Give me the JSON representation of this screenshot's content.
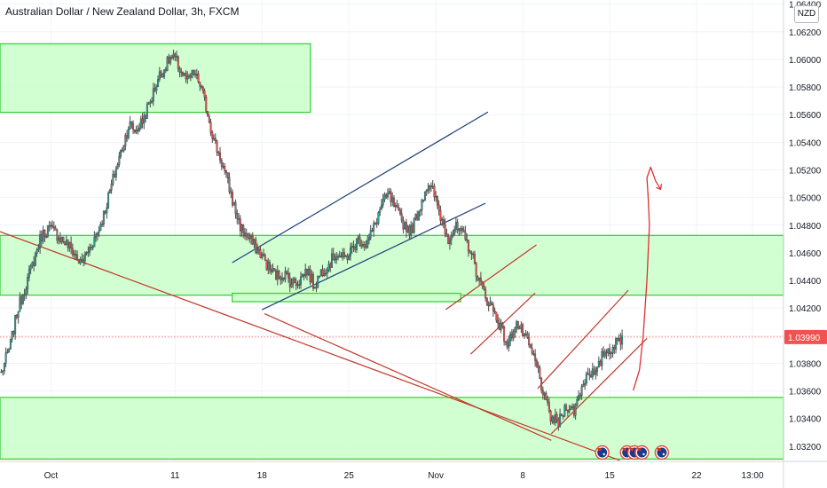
{
  "header": {
    "title": "Australian Dollar / New Zealand Dollar, 3h, FXCM",
    "currency_badge": "NZD"
  },
  "colors": {
    "up": "#26a69a",
    "down": "#ef5350",
    "candle": "#4a4a4a",
    "zone_fill": "#ccffcc",
    "zone_stroke": "#33cc33",
    "channel_blue": "#1f3e7a",
    "trend_red": "#c0392b",
    "price_label_bg": "#ef5350",
    "grid": "#f0f3fa",
    "axis_text": "#131722"
  },
  "chart_data": {
    "type": "candlestick",
    "symbol": "AUDNZD",
    "timeframe": "3h",
    "source": "FXCM",
    "y_axis": {
      "ticks": [
        "1.03200",
        "1.03400",
        "1.03600",
        "1.03800",
        "1.04000",
        "1.04200",
        "1.04400",
        "1.04600",
        "1.04800",
        "1.05000",
        "1.05200",
        "1.05400",
        "1.05600",
        "1.05800",
        "1.06000",
        "1.06200",
        "1.06400"
      ],
      "range": [
        1.0309,
        1.0643
      ]
    },
    "x_axis": {
      "ticks": [
        {
          "label": "Oct",
          "day": 0
        },
        {
          "label": "11",
          "day": 10
        },
        {
          "label": "18",
          "day": 17
        },
        {
          "label": "25",
          "day": 24
        },
        {
          "label": "Nov",
          "day": 31
        },
        {
          "label": "8",
          "day": 38
        },
        {
          "label": "15",
          "day": 45
        },
        {
          "label": "22",
          "day": 52
        },
        {
          "label": "13:00",
          "day": 56.5
        }
      ],
      "range": [
        -4.1,
        59
      ]
    },
    "last_price": "1.03990",
    "price_path": [
      [
        -4.0,
        1.0373
      ],
      [
        -3.3,
        1.0392
      ],
      [
        -2.7,
        1.0418
      ],
      [
        -2.2,
        1.0432
      ],
      [
        -1.5,
        1.0451
      ],
      [
        -0.8,
        1.0472
      ],
      [
        -0.2,
        1.0478
      ],
      [
        0.4,
        1.0474
      ],
      [
        1.0,
        1.0469
      ],
      [
        1.7,
        1.0462
      ],
      [
        2.4,
        1.0452
      ],
      [
        3.1,
        1.0463
      ],
      [
        3.8,
        1.0476
      ],
      [
        4.3,
        1.0489
      ],
      [
        5.0,
        1.0513
      ],
      [
        5.7,
        1.0535
      ],
      [
        6.3,
        1.0553
      ],
      [
        6.8,
        1.0548
      ],
      [
        7.4,
        1.0556
      ],
      [
        8.1,
        1.0572
      ],
      [
        8.7,
        1.0588
      ],
      [
        9.1,
        1.0593
      ],
      [
        9.6,
        1.0601
      ],
      [
        10.0,
        1.06
      ],
      [
        10.5,
        1.0591
      ],
      [
        11.0,
        1.0584
      ],
      [
        11.5,
        1.059
      ],
      [
        12.0,
        1.0582
      ],
      [
        12.6,
        1.0562
      ],
      [
        13.1,
        1.0542
      ],
      [
        13.7,
        1.0527
      ],
      [
        14.3,
        1.0509
      ],
      [
        14.8,
        1.0492
      ],
      [
        15.3,
        1.0478
      ],
      [
        15.8,
        1.0472
      ],
      [
        16.4,
        1.0465
      ],
      [
        17.0,
        1.0458
      ],
      [
        17.6,
        1.0448
      ],
      [
        18.2,
        1.0443
      ],
      [
        18.8,
        1.0445
      ],
      [
        19.4,
        1.0438
      ],
      [
        20.0,
        1.044
      ],
      [
        20.6,
        1.0448
      ],
      [
        21.2,
        1.0436
      ],
      [
        21.8,
        1.0447
      ],
      [
        22.4,
        1.0452
      ],
      [
        23.0,
        1.046
      ],
      [
        23.6,
        1.0455
      ],
      [
        24.2,
        1.0462
      ],
      [
        24.8,
        1.047
      ],
      [
        25.4,
        1.0466
      ],
      [
        26.0,
        1.0478
      ],
      [
        26.6,
        1.0494
      ],
      [
        27.2,
        1.0502
      ],
      [
        27.8,
        1.049
      ],
      [
        28.4,
        1.0481
      ],
      [
        29.0,
        1.0476
      ],
      [
        29.6,
        1.049
      ],
      [
        30.2,
        1.0508
      ],
      [
        30.8,
        1.0504
      ],
      [
        31.4,
        1.0486
      ],
      [
        32.0,
        1.0471
      ],
      [
        32.6,
        1.0478
      ],
      [
        33.2,
        1.0472
      ],
      [
        33.8,
        1.0462
      ],
      [
        34.4,
        1.0442
      ],
      [
        35.0,
        1.0428
      ],
      [
        35.6,
        1.0419
      ],
      [
        36.2,
        1.0407
      ],
      [
        36.8,
        1.0392
      ],
      [
        37.4,
        1.041
      ],
      [
        38.0,
        1.0402
      ],
      [
        38.6,
        1.039
      ],
      [
        39.2,
        1.0376
      ],
      [
        39.8,
        1.0352
      ],
      [
        40.3,
        1.034
      ],
      [
        40.9,
        1.0337
      ],
      [
        41.5,
        1.035
      ],
      [
        42.1,
        1.0345
      ],
      [
        42.7,
        1.0362
      ],
      [
        43.3,
        1.0375
      ],
      [
        43.9,
        1.0371
      ],
      [
        44.5,
        1.0388
      ],
      [
        45.1,
        1.0391
      ],
      [
        45.6,
        1.0395
      ],
      [
        46.0,
        1.0399
      ]
    ],
    "zones": [
      {
        "x_from": -4.1,
        "x_to": 20.9,
        "y_from": 1.05617,
        "y_to": 1.06113
      },
      {
        "x_from": -4.1,
        "x_to": 59,
        "y_from": 1.04293,
        "y_to": 1.04726
      },
      {
        "x_from": 14.6,
        "x_to": 33.0,
        "y_from": 1.04246,
        "y_to": 1.04307
      },
      {
        "x_from": -4.1,
        "x_to": 59,
        "y_from": 1.03107,
        "y_to": 1.03553
      }
    ],
    "channel_lines": [
      {
        "color": "blue",
        "x1": 14.6,
        "y1": 1.04529,
        "x2": 35.2,
        "y2": 1.05619
      },
      {
        "color": "blue",
        "x1": 17.0,
        "y1": 1.04188,
        "x2": 35.0,
        "y2": 1.04959
      },
      {
        "color": "red",
        "x1": 31.8,
        "y1": 1.04189,
        "x2": 39.1,
        "y2": 1.04657
      },
      {
        "color": "red",
        "x1": 33.8,
        "y1": 1.03866,
        "x2": 39.0,
        "y2": 1.04309
      },
      {
        "color": "red",
        "x1": 39.2,
        "y1": 1.03617,
        "x2": 46.5,
        "y2": 1.04329
      },
      {
        "color": "red",
        "x1": 40.3,
        "y1": 1.0329,
        "x2": 48.0,
        "y2": 1.0398
      },
      {
        "color": "red",
        "x1": -4.1,
        "y1": 1.04753,
        "x2": 45.8,
        "y2": 1.03098
      },
      {
        "color": "red",
        "x1": 17.2,
        "y1": 1.04159,
        "x2": 40.3,
        "y2": 1.03242
      }
    ],
    "freehand_arrow": [
      [
        46.9,
        1.03604
      ],
      [
        47.4,
        1.03753
      ],
      [
        47.7,
        1.04
      ],
      [
        48.0,
        1.044
      ],
      [
        48.2,
        1.048
      ],
      [
        48.1,
        1.05
      ],
      [
        48.0,
        1.05143
      ],
      [
        48.3,
        1.0522
      ],
      [
        48.7,
        1.0512
      ],
      [
        49.1,
        1.0506
      ]
    ],
    "event_icon_days": [
      44.4,
      46.4,
      47.0,
      47.6,
      49.2
    ]
  }
}
